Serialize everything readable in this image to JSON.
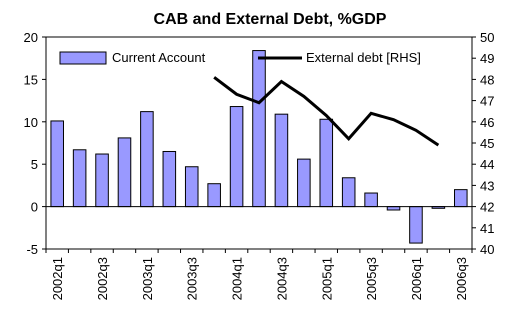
{
  "chart_data": {
    "type": "bar",
    "title": "CAB and External Debt, %GDP",
    "xlabel": "",
    "ylabel": "",
    "categories": [
      "2002q1",
      "2002q2",
      "2002q3",
      "2002q4",
      "2003q1",
      "2003q2",
      "2003q3",
      "2003q4",
      "2004q1",
      "2004q2",
      "2004q3",
      "2004q4",
      "2005q1",
      "2005q2",
      "2005q3",
      "2005q4",
      "2006q1",
      "2006q2",
      "2006q3"
    ],
    "tick_labels": [
      "2002q1",
      "2002q3",
      "2003q1",
      "2003q3",
      "2004q1",
      "2004q3",
      "2005q1",
      "2005q3",
      "2006q1",
      "2006q3"
    ],
    "ylim": [
      -5,
      20
    ],
    "yticks": [
      -5,
      0,
      5,
      10,
      15,
      20
    ],
    "y2lim": [
      40,
      50
    ],
    "y2ticks": [
      40,
      41,
      42,
      43,
      44,
      45,
      46,
      47,
      48,
      49,
      50
    ],
    "legend_position": "top",
    "grid": false,
    "series": [
      {
        "name": "Current Account",
        "type": "bar",
        "axis": "left",
        "color": "#9999ff",
        "values": [
          10.1,
          6.7,
          6.2,
          8.1,
          11.2,
          6.5,
          4.7,
          2.7,
          11.8,
          18.4,
          10.9,
          5.6,
          10.3,
          3.4,
          1.6,
          -0.4,
          -4.3,
          -0.2,
          2.0
        ]
      },
      {
        "name": "External debt [RHS]",
        "type": "line",
        "axis": "right",
        "color": "#000000",
        "x_start": "2003q4",
        "values": [
          null,
          null,
          null,
          null,
          null,
          null,
          null,
          48.1,
          47.3,
          46.9,
          47.9,
          47.2,
          46.3,
          45.2,
          46.4,
          46.1,
          45.6,
          44.9,
          null
        ]
      }
    ]
  }
}
